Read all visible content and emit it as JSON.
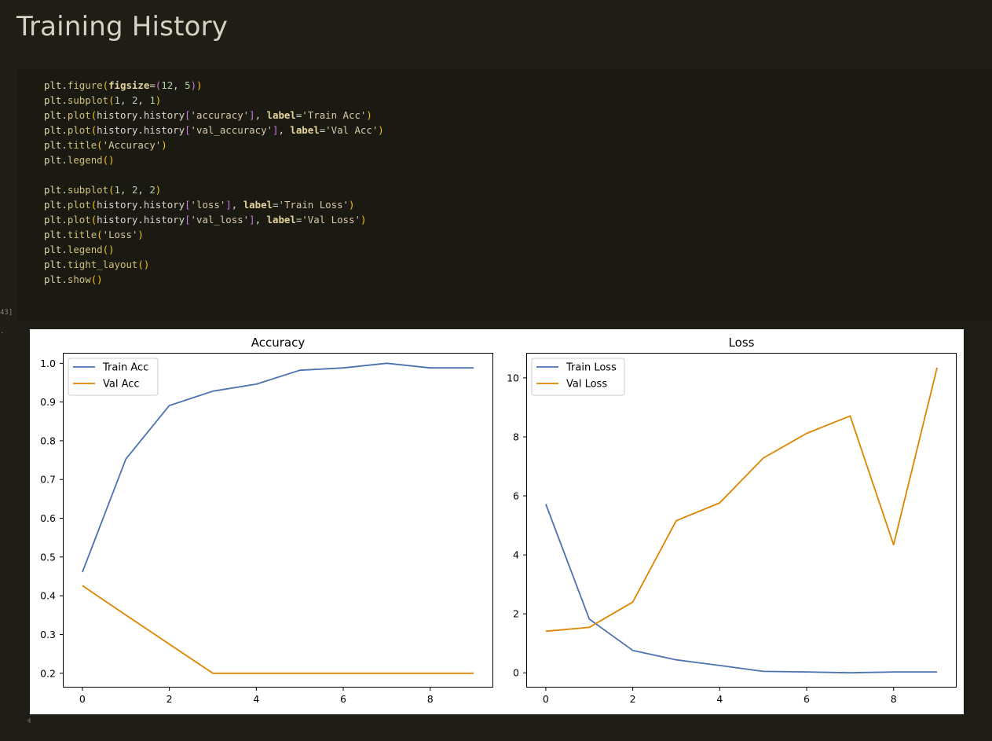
{
  "page": {
    "heading": "Training History",
    "exec_count": "43]",
    "out_marker": "."
  },
  "code_lines": [
    [
      [
        "plt",
        "plt"
      ],
      [
        "p",
        "."
      ],
      [
        "fn",
        "figure"
      ],
      [
        "par",
        "("
      ],
      [
        "kw",
        "figsize"
      ],
      [
        "p",
        "="
      ],
      [
        "brk",
        "("
      ],
      [
        "num",
        "12"
      ],
      [
        "p",
        ", "
      ],
      [
        "num",
        "5"
      ],
      [
        "brk",
        ")"
      ],
      [
        "par",
        ")"
      ]
    ],
    [
      [
        "plt",
        "plt"
      ],
      [
        "p",
        "."
      ],
      [
        "fn",
        "subplot"
      ],
      [
        "par",
        "("
      ],
      [
        "num",
        "1"
      ],
      [
        "p",
        ", "
      ],
      [
        "num",
        "2"
      ],
      [
        "p",
        ", "
      ],
      [
        "num",
        "1"
      ],
      [
        "par",
        ")"
      ]
    ],
    [
      [
        "plt",
        "plt"
      ],
      [
        "p",
        "."
      ],
      [
        "fn",
        "plot"
      ],
      [
        "par",
        "("
      ],
      [
        "p",
        "history.history"
      ],
      [
        "brk",
        "["
      ],
      [
        "str",
        "'accuracy'"
      ],
      [
        "brk",
        "]"
      ],
      [
        "p",
        ", "
      ],
      [
        "kw",
        "label"
      ],
      [
        "p",
        "="
      ],
      [
        "str",
        "'Train Acc'"
      ],
      [
        "par",
        ")"
      ]
    ],
    [
      [
        "plt",
        "plt"
      ],
      [
        "p",
        "."
      ],
      [
        "fn",
        "plot"
      ],
      [
        "par",
        "("
      ],
      [
        "p",
        "history.history"
      ],
      [
        "brk",
        "["
      ],
      [
        "str",
        "'val_accuracy'"
      ],
      [
        "brk",
        "]"
      ],
      [
        "p",
        ", "
      ],
      [
        "kw",
        "label"
      ],
      [
        "p",
        "="
      ],
      [
        "str",
        "'Val Acc'"
      ],
      [
        "par",
        ")"
      ]
    ],
    [
      [
        "plt",
        "plt"
      ],
      [
        "p",
        "."
      ],
      [
        "fn",
        "title"
      ],
      [
        "par",
        "("
      ],
      [
        "str",
        "'Accuracy'"
      ],
      [
        "par",
        ")"
      ]
    ],
    [
      [
        "plt",
        "plt"
      ],
      [
        "p",
        "."
      ],
      [
        "fn",
        "legend"
      ],
      [
        "par",
        "()"
      ]
    ],
    [],
    [
      [
        "plt",
        "plt"
      ],
      [
        "p",
        "."
      ],
      [
        "fn",
        "subplot"
      ],
      [
        "par",
        "("
      ],
      [
        "num",
        "1"
      ],
      [
        "p",
        ", "
      ],
      [
        "num",
        "2"
      ],
      [
        "p",
        ", "
      ],
      [
        "num",
        "2"
      ],
      [
        "par",
        ")"
      ]
    ],
    [
      [
        "plt",
        "plt"
      ],
      [
        "p",
        "."
      ],
      [
        "fn",
        "plot"
      ],
      [
        "par",
        "("
      ],
      [
        "p",
        "history.history"
      ],
      [
        "brk",
        "["
      ],
      [
        "str",
        "'loss'"
      ],
      [
        "brk",
        "]"
      ],
      [
        "p",
        ", "
      ],
      [
        "kw",
        "label"
      ],
      [
        "p",
        "="
      ],
      [
        "str",
        "'Train Loss'"
      ],
      [
        "par",
        ")"
      ]
    ],
    [
      [
        "plt",
        "plt"
      ],
      [
        "p",
        "."
      ],
      [
        "fn",
        "plot"
      ],
      [
        "par",
        "("
      ],
      [
        "p",
        "history.history"
      ],
      [
        "brk",
        "["
      ],
      [
        "str",
        "'val_loss'"
      ],
      [
        "brk",
        "]"
      ],
      [
        "p",
        ", "
      ],
      [
        "kw",
        "label"
      ],
      [
        "p",
        "="
      ],
      [
        "str",
        "'Val Loss'"
      ],
      [
        "par",
        ")"
      ]
    ],
    [
      [
        "plt",
        "plt"
      ],
      [
        "p",
        "."
      ],
      [
        "fn",
        "title"
      ],
      [
        "par",
        "("
      ],
      [
        "str",
        "'Loss'"
      ],
      [
        "par",
        ")"
      ]
    ],
    [
      [
        "plt",
        "plt"
      ],
      [
        "p",
        "."
      ],
      [
        "fn",
        "legend"
      ],
      [
        "par",
        "()"
      ]
    ],
    [
      [
        "plt",
        "plt"
      ],
      [
        "p",
        "."
      ],
      [
        "fn",
        "tight_layout"
      ],
      [
        "par",
        "()"
      ]
    ],
    [
      [
        "plt",
        "plt"
      ],
      [
        "p",
        "."
      ],
      [
        "fn",
        "show"
      ],
      [
        "par",
        "()"
      ]
    ]
  ],
  "colors": {
    "train": "#4c72b0",
    "val": "#dd8400"
  },
  "chart_data": [
    {
      "type": "line",
      "title": "Accuracy",
      "xlabel": "",
      "ylabel": "",
      "x": [
        0,
        1,
        2,
        3,
        4,
        5,
        6,
        7,
        8,
        9
      ],
      "xlim": [
        -0.45,
        9.45
      ],
      "ylim": [
        0.163,
        1.027
      ],
      "xticks": [
        0,
        2,
        4,
        6,
        8
      ],
      "xtick_labels": [
        "0",
        "2",
        "4",
        "6",
        "8"
      ],
      "yticks": [
        0.2,
        0.3,
        0.4,
        0.5,
        0.6,
        0.7,
        0.8,
        0.9,
        1.0
      ],
      "ytick_labels": [
        "0.2",
        "0.3",
        "0.4",
        "0.5",
        "0.6",
        "0.7",
        "0.8",
        "0.9",
        "1.0"
      ],
      "legend_position": "upper-left",
      "grid": false,
      "series": [
        {
          "name": "Train Acc",
          "color": "#4c72b0",
          "values": [
            0.461,
            0.753,
            0.891,
            0.928,
            0.946,
            0.982,
            0.988,
            1.0,
            0.988,
            0.988
          ]
        },
        {
          "name": "Val Acc",
          "color": "#dd8400",
          "values": [
            0.426,
            0.35,
            0.275,
            0.2,
            0.2,
            0.2,
            0.2,
            0.2,
            0.2,
            0.2
          ]
        }
      ]
    },
    {
      "type": "line",
      "title": "Loss",
      "xlabel": "",
      "ylabel": "",
      "x": [
        0,
        1,
        2,
        3,
        4,
        5,
        6,
        7,
        8,
        9
      ],
      "xlim": [
        -0.45,
        9.45
      ],
      "ylim": [
        -0.5,
        10.85
      ],
      "xticks": [
        0,
        2,
        4,
        6,
        8
      ],
      "xtick_labels": [
        "0",
        "2",
        "4",
        "6",
        "8"
      ],
      "yticks": [
        0,
        2,
        4,
        6,
        8,
        10
      ],
      "ytick_labels": [
        "0",
        "2",
        "4",
        "6",
        "8",
        "10"
      ],
      "legend_position": "upper-left",
      "grid": false,
      "series": [
        {
          "name": "Train Loss",
          "color": "#4c72b0",
          "values": [
            5.72,
            1.82,
            0.76,
            0.44,
            0.25,
            0.05,
            0.03,
            0.0,
            0.03,
            0.03
          ]
        },
        {
          "name": "Val Loss",
          "color": "#dd8400",
          "values": [
            1.41,
            1.54,
            2.4,
            5.16,
            5.76,
            7.28,
            8.12,
            8.71,
            4.34,
            10.35
          ]
        }
      ]
    }
  ]
}
